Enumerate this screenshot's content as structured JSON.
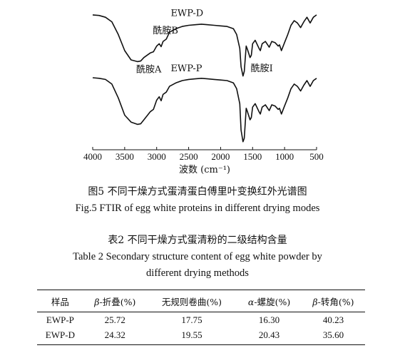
{
  "figure": {
    "caption_cn": "图5 不同干燥方式蛋清蛋白傅里叶变换红外光谱图",
    "caption_en": "Fig.5 FTIR of egg white proteins in different drying modes"
  },
  "chart_data": {
    "type": "line",
    "xlabel": "波数 (cm⁻¹)",
    "ylabel": "",
    "xlim": [
      4000,
      500
    ],
    "x_reversed": true,
    "xticks": [
      "4000",
      "3500",
      "3000",
      "2500",
      "2000",
      "1500",
      "1000",
      "500"
    ],
    "show_y_axis": false,
    "grid": false,
    "series": [
      {
        "name": "EWP-D",
        "x": [
          4000,
          3900,
          3800,
          3700,
          3600,
          3500,
          3400,
          3300,
          3250,
          3200,
          3100,
          3050,
          3000,
          2960,
          2930,
          2900,
          2850,
          2800,
          2700,
          2600,
          2500,
          2400,
          2300,
          2200,
          2100,
          2000,
          1900,
          1800,
          1750,
          1700,
          1680,
          1650,
          1630,
          1600,
          1580,
          1540,
          1520,
          1500,
          1460,
          1400,
          1380,
          1350,
          1300,
          1240,
          1200,
          1150,
          1100,
          1080,
          1050,
          1000,
          950,
          900,
          850,
          800,
          750,
          700,
          650,
          600,
          550,
          500
        ],
        "values": [
          0.97,
          0.965,
          0.95,
          0.91,
          0.8,
          0.66,
          0.58,
          0.565,
          0.57,
          0.6,
          0.64,
          0.65,
          0.7,
          0.72,
          0.695,
          0.74,
          0.76,
          0.82,
          0.85,
          0.87,
          0.88,
          0.885,
          0.89,
          0.885,
          0.88,
          0.875,
          0.87,
          0.85,
          0.8,
          0.68,
          0.52,
          0.44,
          0.48,
          0.7,
          0.67,
          0.6,
          0.62,
          0.72,
          0.75,
          0.68,
          0.66,
          0.72,
          0.74,
          0.69,
          0.74,
          0.73,
          0.7,
          0.71,
          0.66,
          0.73,
          0.8,
          0.88,
          0.92,
          0.9,
          0.86,
          0.91,
          0.95,
          0.9,
          0.95,
          0.97
        ]
      },
      {
        "name": "EWP-P",
        "x": [
          4000,
          3900,
          3800,
          3700,
          3600,
          3500,
          3400,
          3300,
          3250,
          3200,
          3100,
          3050,
          3000,
          2960,
          2930,
          2900,
          2850,
          2800,
          2700,
          2600,
          2500,
          2400,
          2300,
          2200,
          2100,
          2000,
          1900,
          1800,
          1750,
          1700,
          1680,
          1650,
          1630,
          1600,
          1580,
          1540,
          1520,
          1500,
          1460,
          1400,
          1380,
          1350,
          1300,
          1240,
          1200,
          1150,
          1100,
          1080,
          1050,
          1000,
          950,
          900,
          850,
          800,
          750,
          700,
          650,
          600,
          550,
          500
        ],
        "values": [
          0.425,
          0.42,
          0.41,
          0.37,
          0.25,
          0.1,
          0.04,
          0.02,
          0.025,
          0.06,
          0.13,
          0.15,
          0.23,
          0.26,
          0.225,
          0.28,
          0.3,
          0.35,
          0.38,
          0.4,
          0.41,
          0.415,
          0.42,
          0.415,
          0.41,
          0.405,
          0.4,
          0.38,
          0.33,
          0.2,
          -0.03,
          -0.13,
          -0.1,
          0.16,
          0.13,
          0.06,
          0.08,
          0.17,
          0.2,
          0.13,
          0.11,
          0.17,
          0.19,
          0.14,
          0.19,
          0.18,
          0.15,
          0.16,
          0.11,
          0.18,
          0.25,
          0.33,
          0.37,
          0.35,
          0.31,
          0.36,
          0.4,
          0.35,
          0.4,
          0.42
        ]
      }
    ],
    "annotations": [
      {
        "text": "EWP-D",
        "x": 2780,
        "y": 0.96
      },
      {
        "text": "酰胺B",
        "x": 3060,
        "y": 0.81
      },
      {
        "text": "酰胺A",
        "x": 3320,
        "y": 0.47
      },
      {
        "text": "EWP-P",
        "x": 2780,
        "y": 0.48
      },
      {
        "text": "酰胺I",
        "x": 1530,
        "y": 0.48
      }
    ],
    "ylim": [
      -0.2,
      1.05
    ]
  },
  "table": {
    "title_cn": "表2 不同干燥方式蛋清粉的二级结构含量",
    "title_en_line1": "Table 2 Secondary structure content of egg white powder by",
    "title_en_line2": "different drying methods",
    "headers": [
      {
        "prefix": "",
        "text": "样品"
      },
      {
        "prefix": "β-",
        "text": "折叠(%)"
      },
      {
        "prefix": "",
        "text": "无规则卷曲(%)"
      },
      {
        "prefix": "α-",
        "text": "螺旋(%)"
      },
      {
        "prefix": "β-",
        "text": "转角(%)"
      }
    ],
    "rows": [
      [
        "EWP-P",
        "25.72",
        "17.75",
        "16.30",
        "40.23"
      ],
      [
        "EWP-D",
        "24.32",
        "19.55",
        "20.43",
        "35.60"
      ]
    ]
  }
}
